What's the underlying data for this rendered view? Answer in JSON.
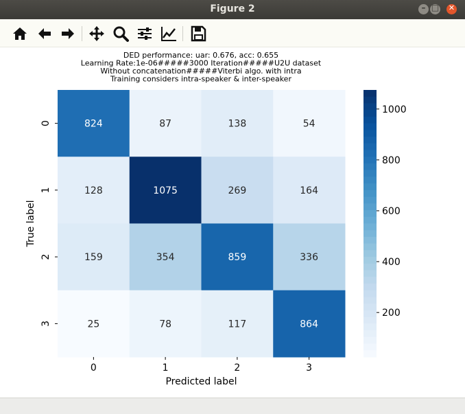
{
  "window": {
    "title": "Figure 2"
  },
  "toolbar": {
    "buttons": [
      {
        "name": "home-icon"
      },
      {
        "name": "back-icon"
      },
      {
        "name": "forward-icon"
      },
      {
        "name": "pan-icon"
      },
      {
        "name": "zoom-icon"
      },
      {
        "name": "configure-subplots-icon"
      },
      {
        "name": "edit-axis-icon"
      },
      {
        "name": "save-icon"
      }
    ]
  },
  "chart_data": {
    "type": "heatmap",
    "title_lines": [
      "DED performance: uar: 0.676, acc: 0.655",
      "Learning Rate:1e-06#####3000 Iteration#####U2U dataset",
      "Without concatenation#####Viterbi algo. with intra",
      "Training considers intra-speaker & inter-speaker"
    ],
    "xlabel": "Predicted label",
    "ylabel": "True label",
    "x_categories": [
      "0",
      "1",
      "2",
      "3"
    ],
    "y_categories": [
      "0",
      "1",
      "2",
      "3"
    ],
    "values": [
      [
        824,
        87,
        138,
        54
      ],
      [
        128,
        1075,
        269,
        164
      ],
      [
        159,
        354,
        859,
        336
      ],
      [
        25,
        78,
        117,
        864
      ]
    ],
    "colormap": "Blues",
    "colorbar": {
      "min": 25,
      "max": 1075,
      "ticks": [
        200,
        400,
        600,
        800,
        1000
      ]
    }
  }
}
